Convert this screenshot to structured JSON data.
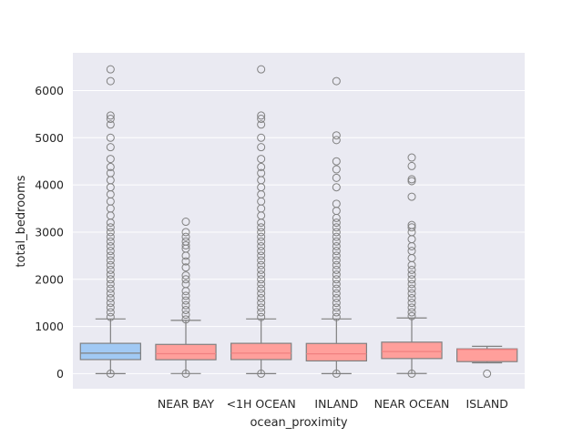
{
  "chart_data": {
    "type": "box",
    "xlabel": "ocean_proximity",
    "ylabel": "total_bedrooms",
    "categories": [
      "",
      "NEAR BAY",
      "<1H OCEAN",
      "INLAND",
      "NEAR OCEAN",
      "ISLAND"
    ],
    "yticks": [
      0,
      1000,
      2000,
      3000,
      4000,
      5000,
      6000
    ],
    "ylim": [
      -320,
      6800
    ],
    "grid": true,
    "background": "#eaeaf2",
    "box_colors": [
      "#a1c9f4",
      "#ff9f9b",
      "#ff9f9b",
      "#ff9f9b",
      "#ff9f9b",
      "#ff9f9b"
    ],
    "median_line_color": "#f08080",
    "boxes": [
      {
        "q1": 298,
        "median": 435,
        "q3": 643,
        "whisker_low": 1,
        "whisker_high": 1160,
        "outliers_high": [
          1200,
          1300,
          1400,
          1500,
          1600,
          1700,
          1800,
          1900,
          2000,
          2100,
          2200,
          2300,
          2400,
          2500,
          2600,
          2700,
          2800,
          2900,
          3000,
          3100,
          3200,
          3350,
          3500,
          3650,
          3800,
          3950,
          4100,
          4250,
          4380,
          4550,
          4800,
          5000,
          5280,
          5400,
          5470,
          6200,
          6450
        ],
        "outliers_low": [
          0
        ]
      },
      {
        "q1": 295,
        "median": 423,
        "q3": 620,
        "whisker_low": 2,
        "whisker_high": 1130,
        "outliers_high": [
          1150,
          1250,
          1350,
          1450,
          1550,
          1650,
          1750,
          1900,
          2000,
          2080,
          2250,
          2380,
          2500,
          2650,
          2720,
          2800,
          2900,
          3000,
          3220
        ],
        "outliers_low": [
          0
        ]
      },
      {
        "q1": 298,
        "median": 435,
        "q3": 643,
        "whisker_low": 1,
        "whisker_high": 1160,
        "outliers_high": [
          1200,
          1300,
          1400,
          1500,
          1600,
          1700,
          1800,
          1900,
          2000,
          2100,
          2200,
          2300,
          2400,
          2500,
          2600,
          2700,
          2800,
          2900,
          3000,
          3100,
          3200,
          3350,
          3500,
          3650,
          3800,
          3950,
          4100,
          4250,
          4380,
          4550,
          4800,
          5000,
          5280,
          5400,
          5470,
          6450
        ],
        "outliers_low": [
          0
        ]
      },
      {
        "q1": 270,
        "median": 420,
        "q3": 640,
        "whisker_low": 1,
        "whisker_high": 1160,
        "outliers_high": [
          1200,
          1300,
          1400,
          1500,
          1600,
          1700,
          1800,
          1900,
          2000,
          2100,
          2200,
          2300,
          2400,
          2500,
          2600,
          2700,
          2800,
          2900,
          3000,
          3100,
          3200,
          3300,
          3450,
          3600,
          3950,
          4150,
          4330,
          4500,
          4950,
          5050,
          6200
        ],
        "outliers_low": [
          0
        ]
      },
      {
        "q1": 320,
        "median": 468,
        "q3": 668,
        "whisker_low": 3,
        "whisker_high": 1180,
        "outliers_high": [
          1220,
          1300,
          1400,
          1500,
          1600,
          1700,
          1800,
          1900,
          2000,
          2100,
          2200,
          2300,
          2450,
          2600,
          2700,
          2850,
          3000,
          3100,
          3150,
          3750,
          4080,
          4120,
          4400,
          4580
        ],
        "outliers_low": [
          0
        ]
      },
      {
        "q1": 255,
        "median": 512,
        "q3": 525,
        "whisker_low": 230,
        "whisker_high": 580,
        "outliers_high": [],
        "outliers_low": [
          0
        ]
      }
    ]
  }
}
